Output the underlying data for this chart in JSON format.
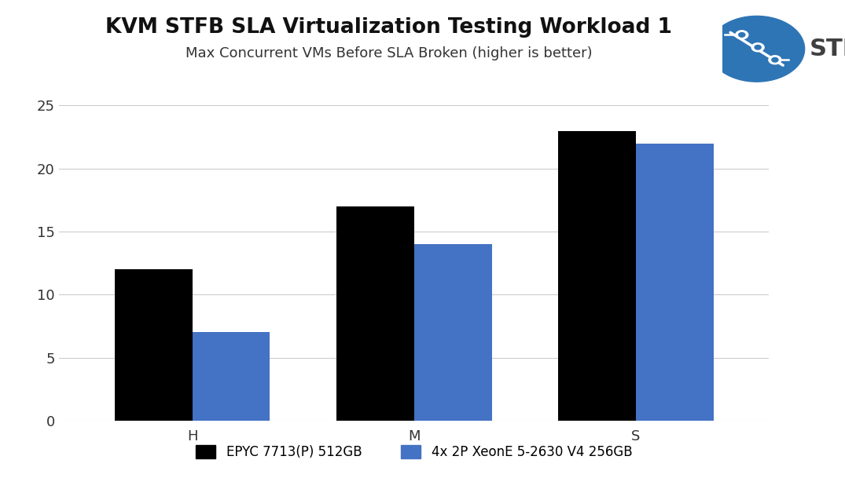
{
  "title": "KVM STFB SLA Virtualization Testing Workload 1",
  "subtitle": "Max Concurrent VMs Before SLA Broken (higher is better)",
  "categories": [
    "H",
    "M",
    "S"
  ],
  "series": [
    {
      "name": "EPYC 7713(P) 512GB",
      "values": [
        12,
        17,
        23
      ],
      "color": "#000000"
    },
    {
      "name": "4x 2P XeonE 5-2630 V4 256GB",
      "values": [
        7,
        14,
        22
      ],
      "color": "#4472C4"
    }
  ],
  "ylim": [
    0,
    26
  ],
  "yticks": [
    0,
    5,
    10,
    15,
    20,
    25
  ],
  "bar_width": 0.35,
  "background_color": "#ffffff",
  "title_fontsize": 19,
  "subtitle_fontsize": 13,
  "tick_fontsize": 13,
  "legend_fontsize": 12,
  "grid_color": "#cccccc",
  "figsize": [
    10.75,
    6.23
  ],
  "dpi": 100,
  "sth_blue": "#2e75b6",
  "sth_dark": "#404040"
}
